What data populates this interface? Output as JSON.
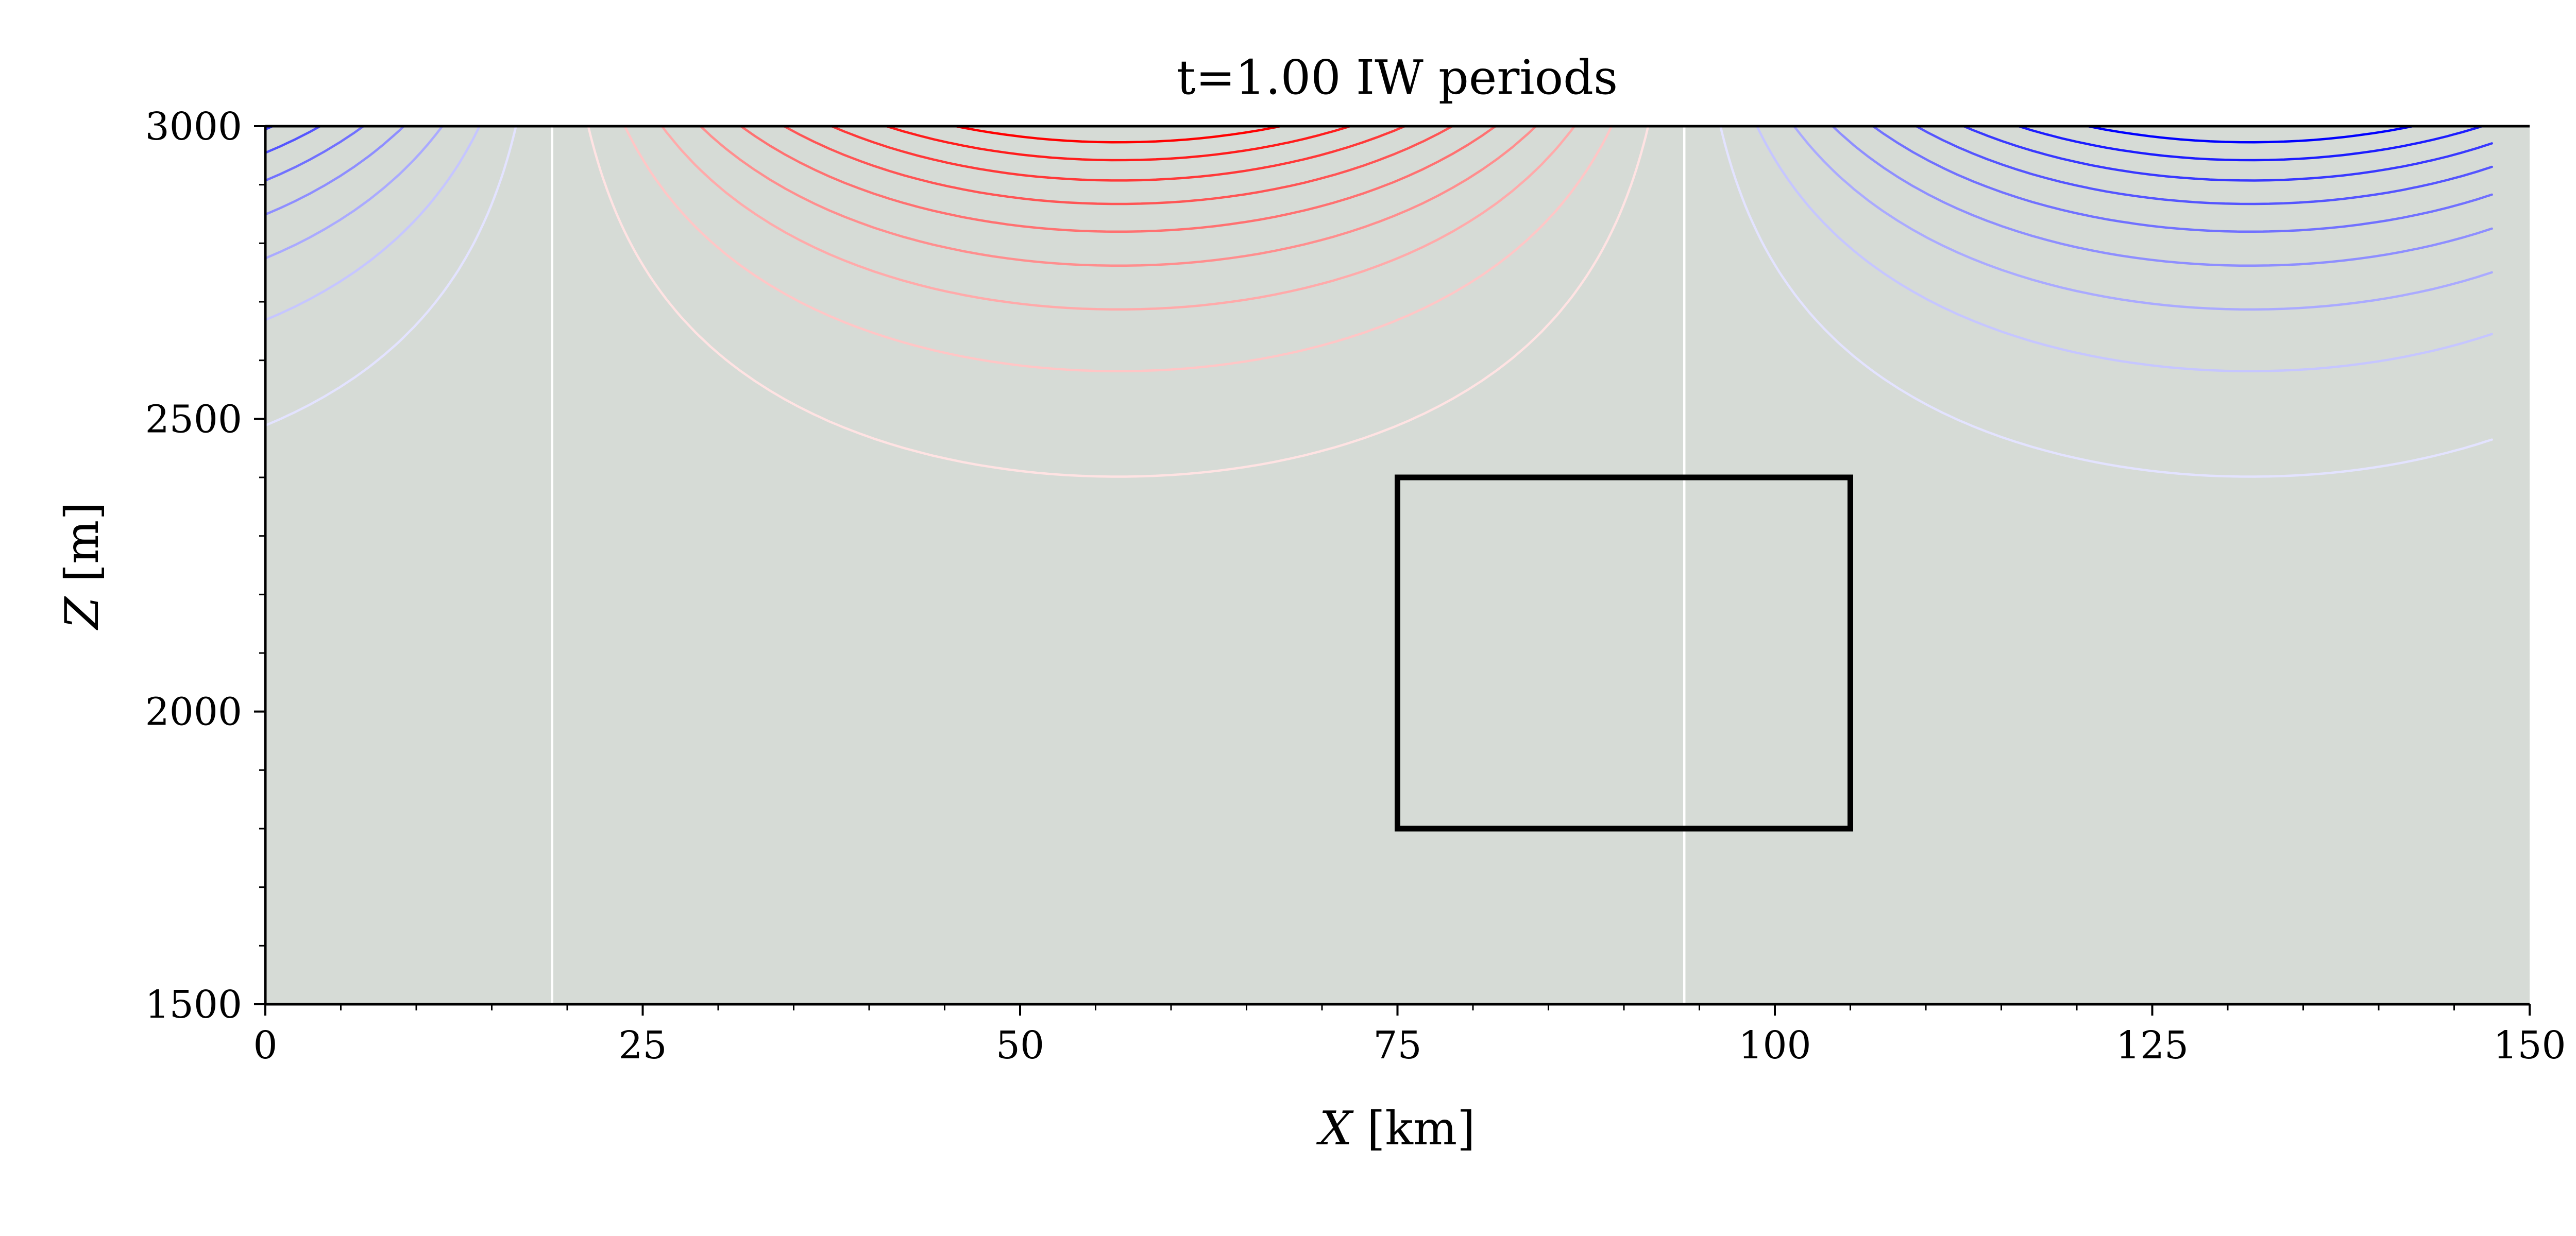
{
  "chart_data": {
    "type": "line",
    "title": "t=1.00 IW periods",
    "xlabel_var": "X",
    "xlabel_unit": " [km]",
    "ylabel_var": "Z",
    "ylabel_unit": " [m]",
    "xlim": [
      0,
      150
    ],
    "ylim": [
      1500,
      3000
    ],
    "xticks": [
      0,
      25,
      50,
      75,
      100,
      125,
      150
    ],
    "yticks": [
      1500,
      2000,
      2500,
      3000
    ],
    "grid": false,
    "background_color": "#d6dbd6",
    "field": {
      "wavelength_km": 150,
      "positive_center_x": 56.5,
      "negative_center_x": 131.5,
      "node_x": [
        19,
        94
      ],
      "vertical_decay_m": 260,
      "x_extent": [
        0,
        147.5
      ]
    },
    "contour_levels": [
      -0.9,
      -0.8,
      -0.7,
      -0.6,
      -0.5,
      -0.4,
      -0.3,
      -0.2,
      -0.1,
      0.0,
      0.1,
      0.2,
      0.3,
      0.4,
      0.5,
      0.6,
      0.7,
      0.8,
      0.9
    ],
    "inset_box": {
      "x": [
        75,
        105
      ],
      "z": [
        1800,
        2400
      ],
      "line_color": "#000000",
      "inner_contour_levels": [
        -0.6,
        -0.5,
        -0.4,
        -0.3,
        -0.2,
        -0.1,
        0.0,
        0.1,
        0.2
      ]
    },
    "colors": {
      "positive": "#ff0000",
      "negative": "#0000ff",
      "zero": "#ffffff",
      "box": "#000000"
    }
  }
}
